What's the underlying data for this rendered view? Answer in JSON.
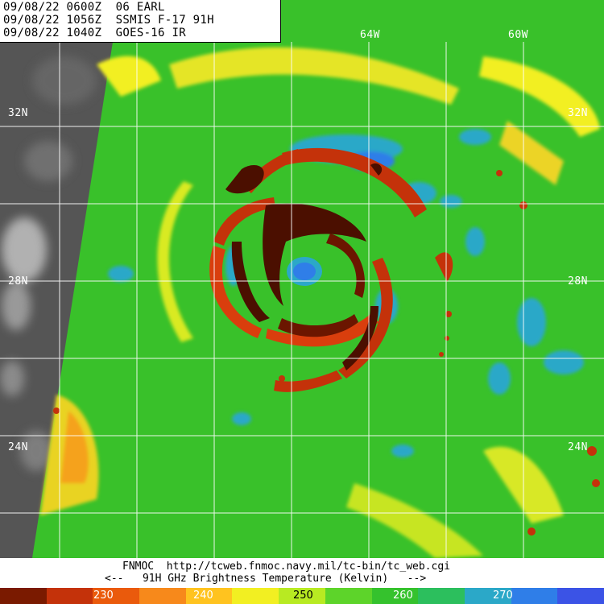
{
  "header": {
    "line1": "09/08/22 0600Z  06 EARL",
    "line2": "09/08/22 1056Z  SSMIS F-17 91H",
    "line3": "09/08/22 1040Z  GOES-16 IR"
  },
  "grid_labels": {
    "lat_32_left": "32N",
    "lat_32_right": "32N",
    "lat_28_left": "28N",
    "lat_28_right": "28N",
    "lat_24_left": "24N",
    "lat_24_right": "24N",
    "lon_64": "64W",
    "lon_60": "60W"
  },
  "footer": {
    "source": "FNMOC  http://tcweb.fnmoc.navy.mil/tc-bin/tc_web.cgi",
    "legend_caption": "<--   91H GHz Brightness Temperature (Kelvin)   -->"
  },
  "colorbar": {
    "labels": [
      "230",
      "240",
      "250",
      "260",
      "270"
    ],
    "colors": [
      "#7a1a00",
      "#c4320a",
      "#ea5a0c",
      "#f7891b",
      "#ffc31f",
      "#f2ef22",
      "#b8ea22",
      "#5dd42a",
      "#35c22d",
      "#2cbf5d",
      "#2ba8c8",
      "#2f7ee8",
      "#3b53e6"
    ]
  },
  "storm": {
    "name": "EARL",
    "number": "06"
  }
}
